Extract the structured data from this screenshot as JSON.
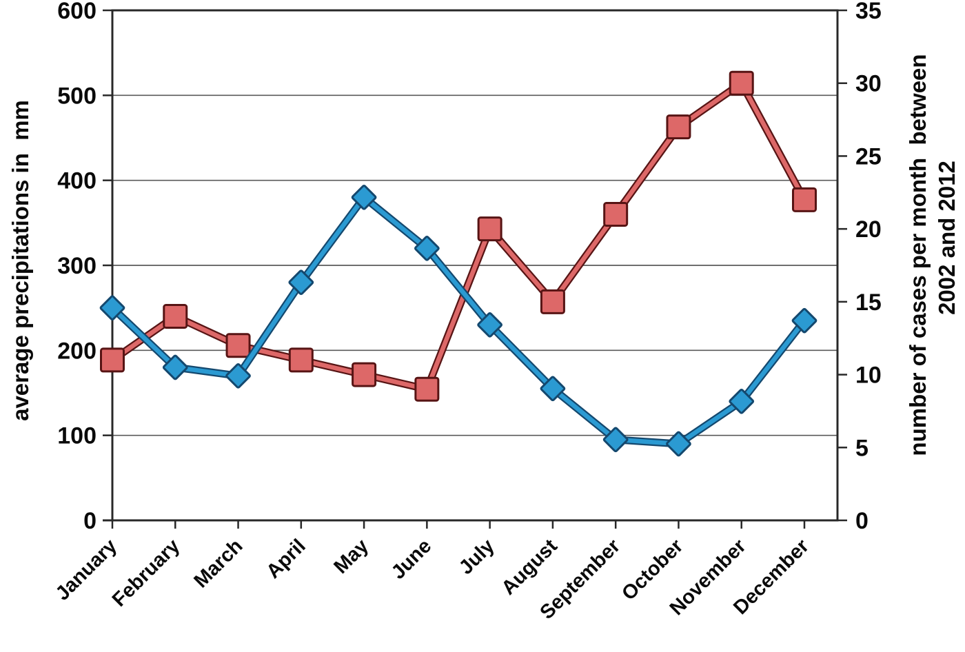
{
  "chart_data": {
    "type": "line",
    "title": "",
    "categories": [
      "January",
      "February",
      "March",
      "April",
      "May",
      "June",
      "July",
      "August",
      "September",
      "October",
      "November",
      "December"
    ],
    "series": [
      {
        "key": "cases",
        "name": "number of cases per month between 2002 and 2012",
        "axis": "right",
        "marker": "square",
        "color": "#dd6868",
        "outline_color": "#571414",
        "values": [
          11,
          14,
          12,
          11,
          10,
          9,
          20,
          15,
          21,
          27,
          30,
          22
        ]
      },
      {
        "key": "precipitation",
        "name": "average precipitations in mm",
        "axis": "left",
        "marker": "diamond",
        "color": "#2b9ad2",
        "outline_color": "#14486e",
        "values": [
          250,
          180,
          170,
          280,
          380,
          320,
          230,
          155,
          95,
          90,
          140,
          235
        ]
      }
    ],
    "left_axis": {
      "title": "average precipitations in  mm",
      "min": 0,
      "max": 600,
      "step": 100,
      "ticks": [
        "0",
        "100",
        "200",
        "300",
        "400",
        "500",
        "600"
      ]
    },
    "right_axis": {
      "title_line1": "number of cases per month  between",
      "title_line2": "2002 and 2012",
      "min": 0,
      "max": 35,
      "step": 5,
      "ticks": [
        "0",
        "5",
        "10",
        "15",
        "20",
        "25",
        "30",
        "35"
      ]
    },
    "grid": true,
    "legend_position": "none",
    "styling": {
      "grid_color": "#595959",
      "axis_color": "#282828",
      "text_color": "#0a0a0a",
      "background": "#ffffff"
    }
  }
}
